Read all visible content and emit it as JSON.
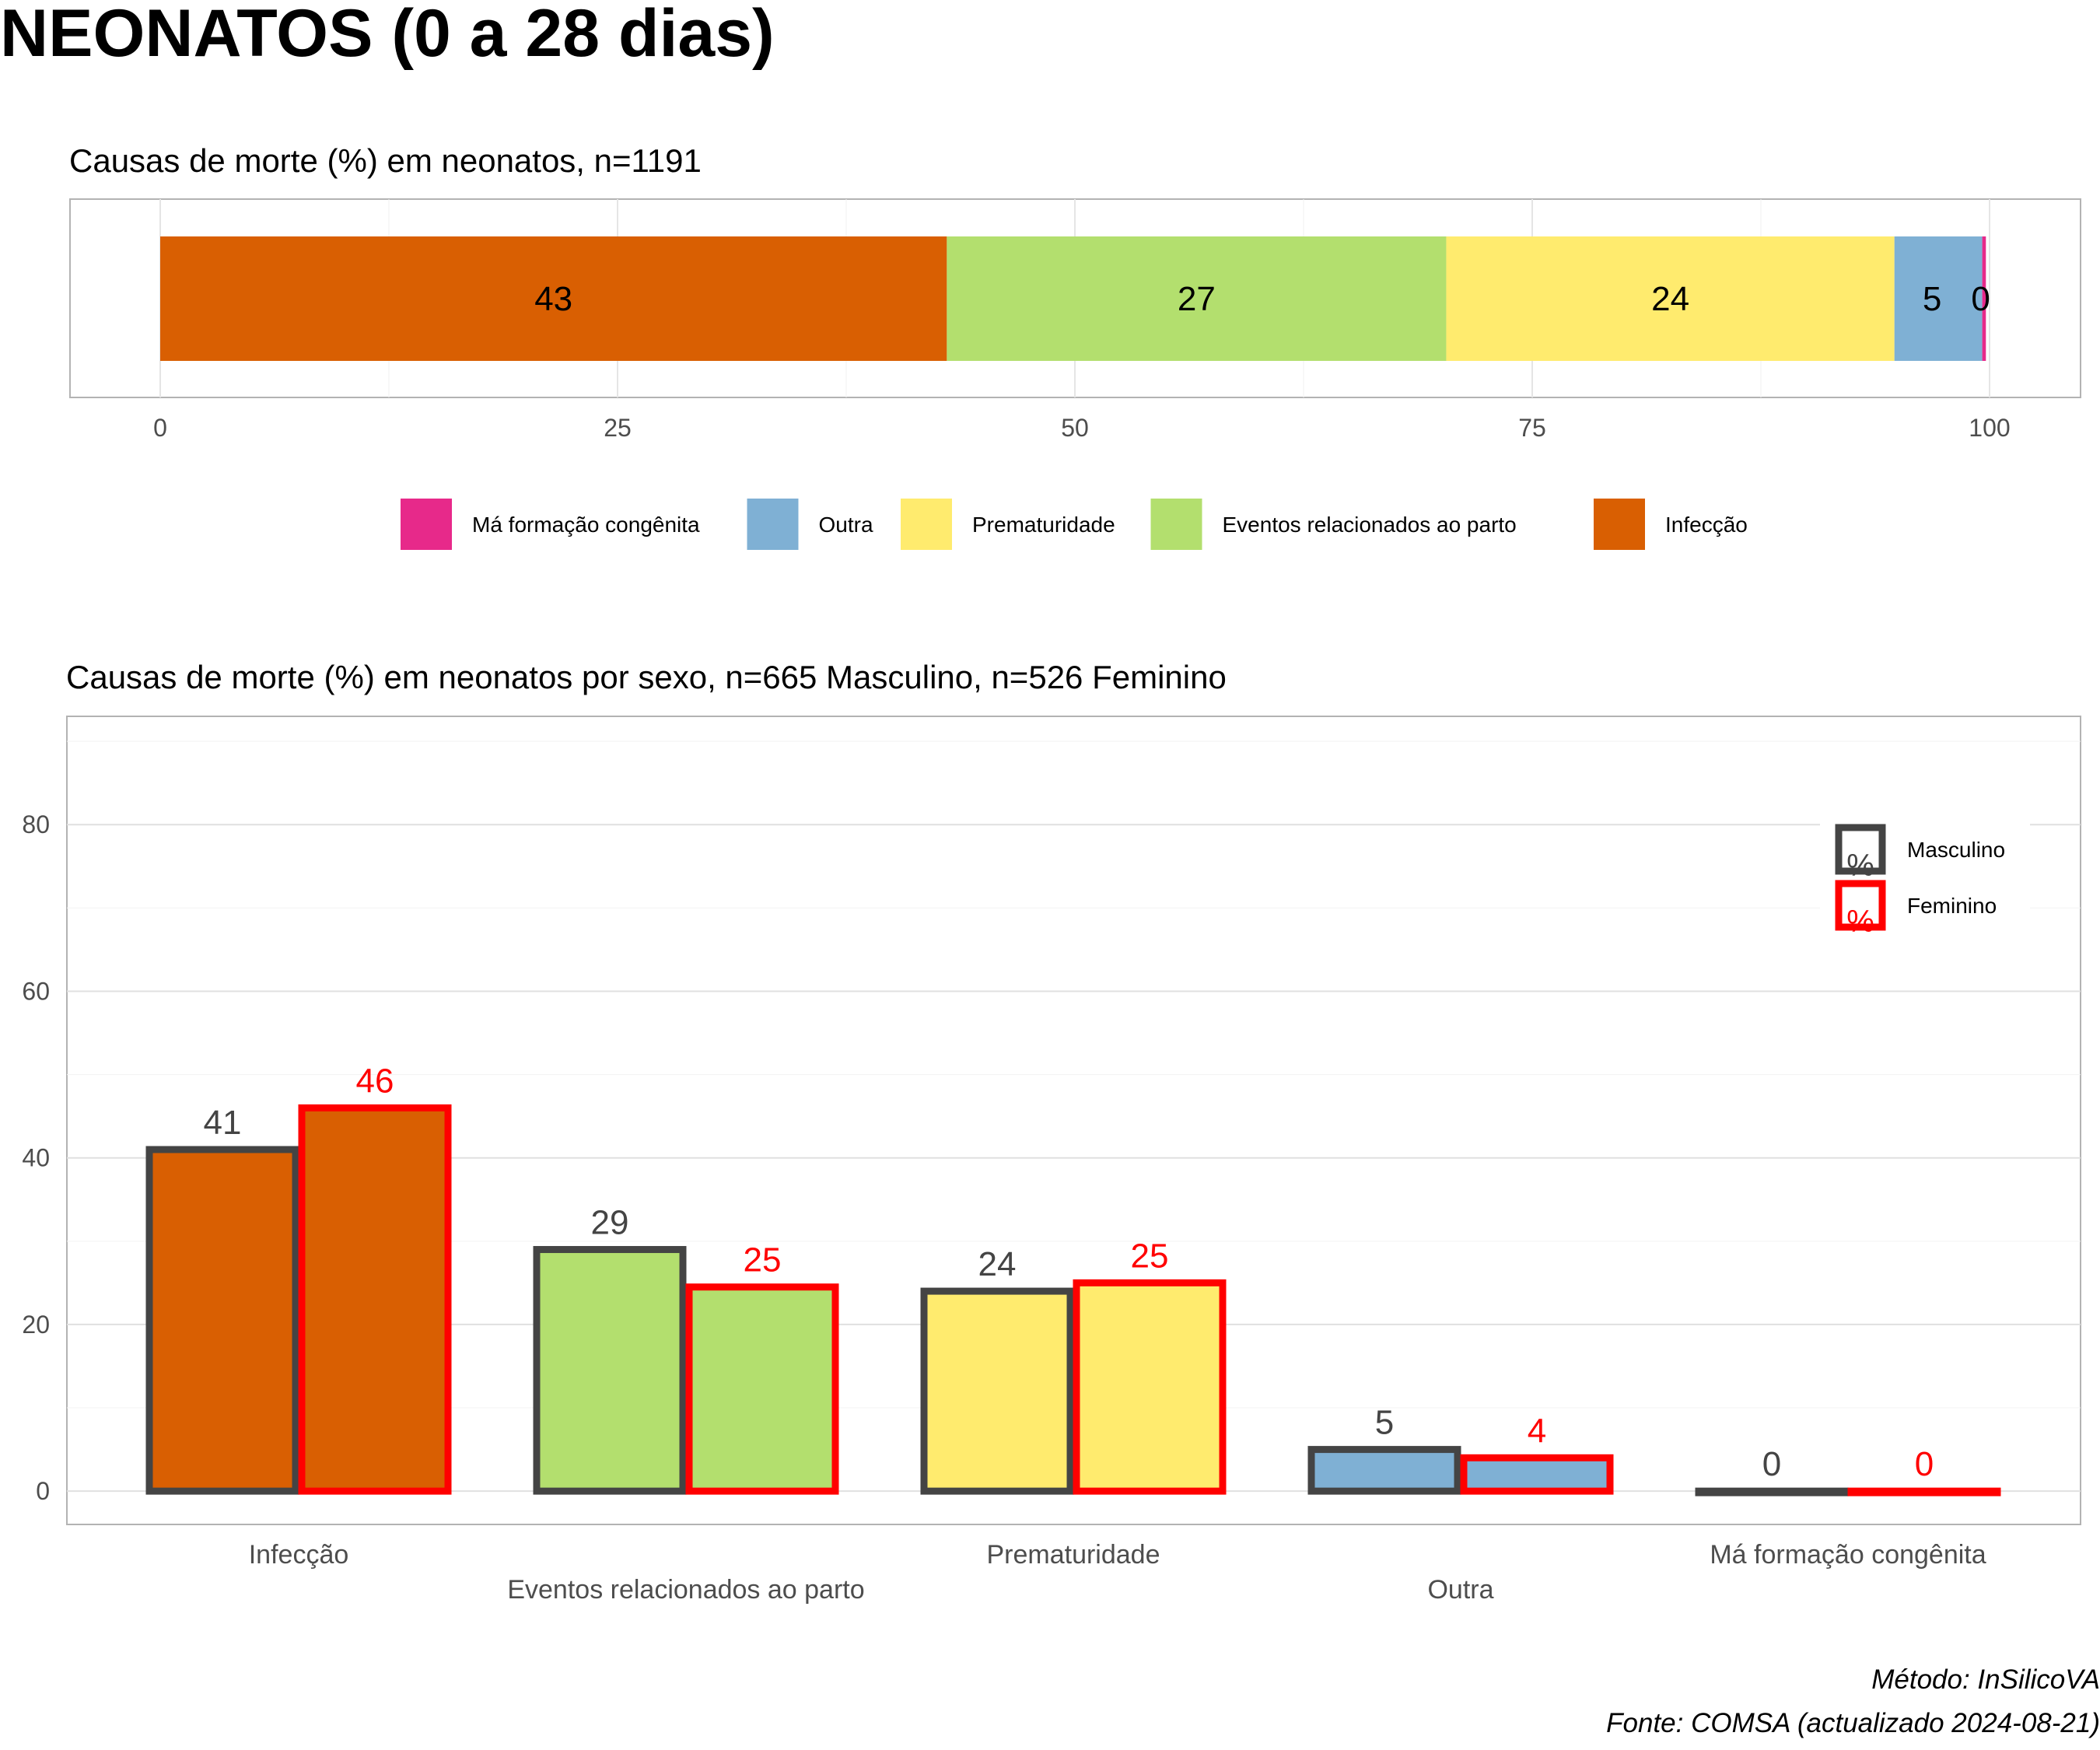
{
  "main_title": "NEONATOS (0 a 28 dias)",
  "captions": {
    "method": "Método: InSilicoVA",
    "source": "Fonte: COMSA (actualizado 2024-08-21)"
  },
  "colors": {
    "Infecção": "#d95f02",
    "Eventos relacionados ao parto": "#b3df6e",
    "Prematuridade": "#ffeb6e",
    "Outra": "#7fb0d4",
    "Má formação congênita": "#e7298a",
    "masculino_outline": "#444444",
    "feminino_outline": "#ff0000"
  },
  "chart_data": [
    {
      "type": "bar",
      "orientation": "horizontal-stacked",
      "title": "Causas de morte (%) em neonatos, n=1191",
      "xlim": [
        0,
        100
      ],
      "xticks": [
        0,
        25,
        50,
        75,
        100
      ],
      "grid": true,
      "legend_position": "bottom",
      "series": [
        {
          "name": "Infecção",
          "value": 43,
          "label": "43"
        },
        {
          "name": "Eventos relacionados ao parto",
          "value": 27.3,
          "label": "27"
        },
        {
          "name": "Prematuridade",
          "value": 24.5,
          "label": "24"
        },
        {
          "name": "Outra",
          "value": 4.8,
          "label": "5"
        },
        {
          "name": "Má formação congênita",
          "value": 0.2,
          "label": "0"
        }
      ],
      "legend_order": [
        "Má formação congênita",
        "Outra",
        "Prematuridade",
        "Eventos relacionados ao parto",
        "Infecção"
      ]
    },
    {
      "type": "bar",
      "orientation": "vertical-grouped",
      "title": "Causas de morte (%) em neonatos por sexo, n=665 Masculino, n=526 Feminino",
      "categories": [
        "Infecção",
        "Eventos relacionados ao parto",
        "Prematuridade",
        "Outra",
        "Má formação congênita"
      ],
      "series": [
        {
          "name": "Masculino",
          "values": [
            41,
            29,
            24,
            5,
            0
          ],
          "labels": [
            "41",
            "29",
            "24",
            "5",
            "0"
          ]
        },
        {
          "name": "Feminino",
          "values": [
            46,
            24.5,
            25,
            4,
            0
          ],
          "labels": [
            "46",
            "25",
            "25",
            "4",
            "0"
          ]
        }
      ],
      "ylim": [
        -4,
        93
      ],
      "yticks": [
        0,
        20,
        40,
        60,
        80
      ],
      "grid": true,
      "legend_position": "top-right",
      "legend_key_glyph": "%"
    }
  ]
}
